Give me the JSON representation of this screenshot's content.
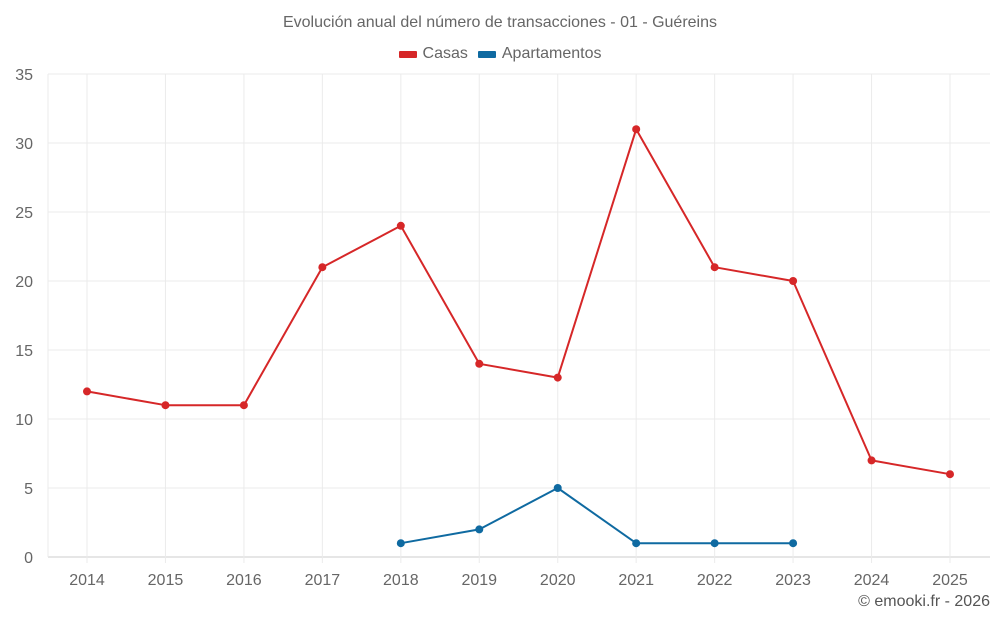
{
  "chart_data": {
    "type": "line",
    "title": "Evolución anual del número de transacciones - 01 - Guéreins",
    "xlabel": "",
    "ylabel": "",
    "ylim": [
      0,
      35
    ],
    "yticks": [
      0,
      5,
      10,
      15,
      20,
      25,
      30,
      35
    ],
    "grid": true,
    "legend_position": "top",
    "categories": [
      "2014",
      "2015",
      "2016",
      "2017",
      "2018",
      "2019",
      "2020",
      "2021",
      "2022",
      "2023",
      "2024",
      "2025"
    ],
    "series": [
      {
        "name": "Casas",
        "color": "#d62728",
        "values": [
          12,
          11,
          11,
          21,
          24,
          14,
          13,
          31,
          21,
          20,
          7,
          6
        ]
      },
      {
        "name": "Apartamentos",
        "color": "#0f6aa1",
        "values": [
          null,
          null,
          null,
          null,
          1,
          2,
          5,
          1,
          1,
          1,
          null,
          null
        ]
      }
    ]
  },
  "header": {
    "title": "Evolución anual del número de transacciones - 01 - Guéreins"
  },
  "legend": {
    "items": [
      {
        "label": "Casas",
        "color": "#d62728"
      },
      {
        "label": "Apartamentos",
        "color": "#0f6aa1"
      }
    ]
  },
  "footer": {
    "credit": "© emooki.fr - 2026"
  }
}
